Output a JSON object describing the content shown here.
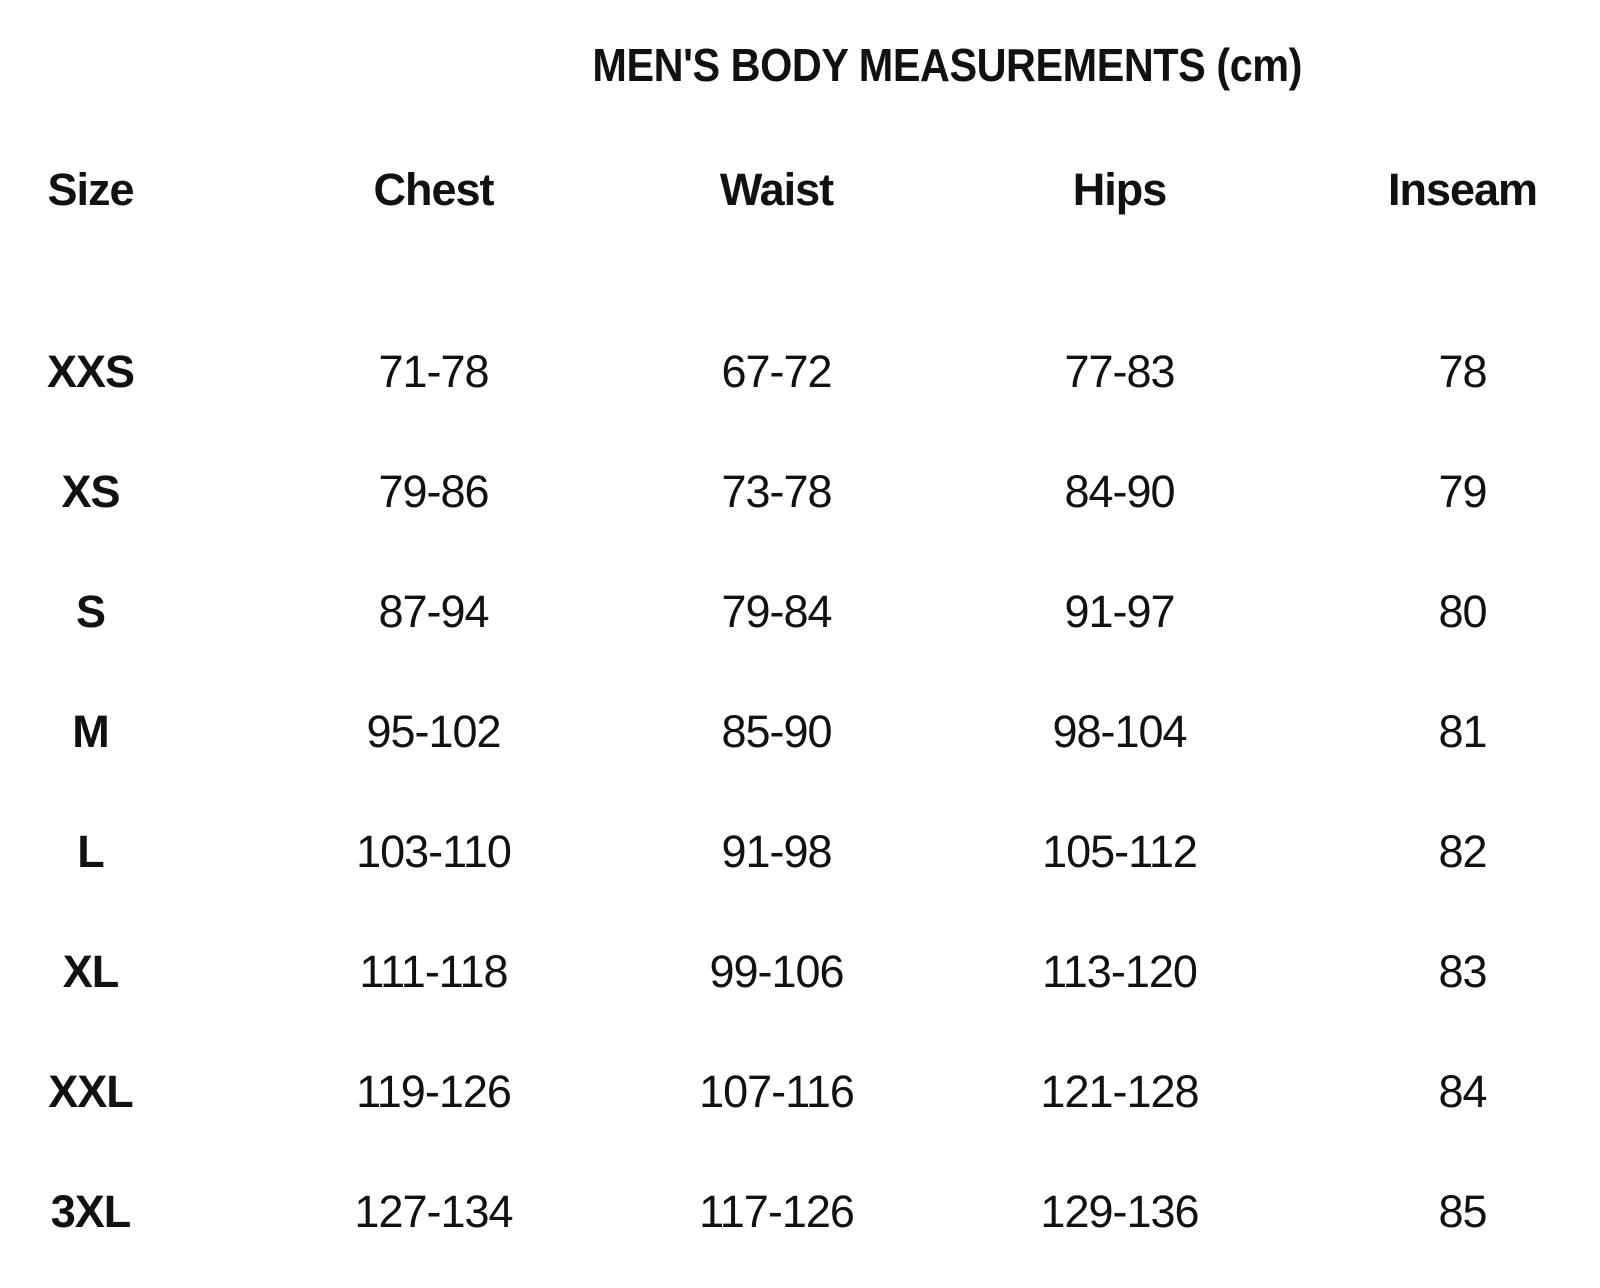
{
  "title": "MEN'S BODY MEASUREMENTS (cm)",
  "colors": {
    "background": "#ffffff",
    "text": "#111111"
  },
  "chart_data": {
    "type": "table",
    "title": "MEN'S BODY MEASUREMENTS (cm)",
    "units": "cm",
    "columns": [
      "Size",
      "Chest",
      "Waist",
      "Hips",
      "Inseam"
    ],
    "rows": [
      [
        "XXS",
        "71-78",
        "67-72",
        "77-83",
        "78"
      ],
      [
        "XS",
        "79-86",
        "73-78",
        "84-90",
        "79"
      ],
      [
        "S",
        "87-94",
        "79-84",
        "91-97",
        "80"
      ],
      [
        "M",
        "95-102",
        "85-90",
        "98-104",
        "81"
      ],
      [
        "L",
        "103-110",
        "91-98",
        "105-112",
        "82"
      ],
      [
        "XL",
        "111-118",
        "99-106",
        "113-120",
        "83"
      ],
      [
        "XXL",
        "119-126",
        "107-116",
        "121-128",
        "84"
      ],
      [
        "3XL",
        "127-134",
        "117-126",
        "129-136",
        "85"
      ]
    ]
  }
}
